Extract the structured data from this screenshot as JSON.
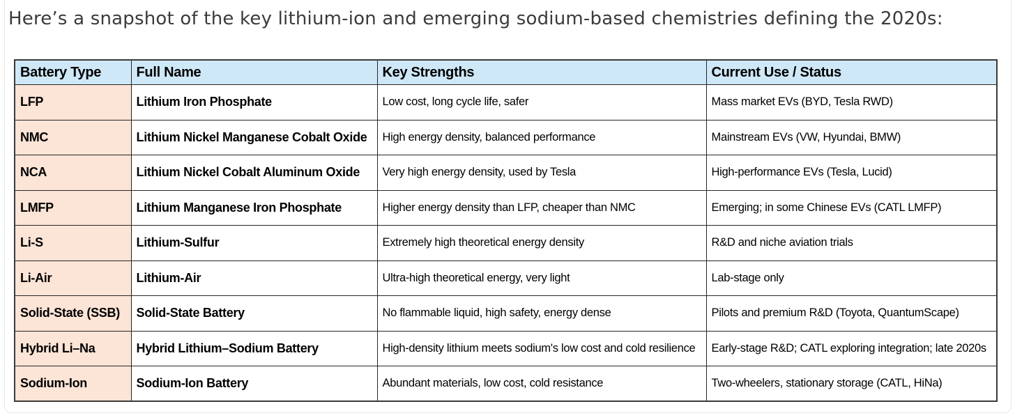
{
  "page": {
    "intro": "Here’s a snapshot of the key lithium-ion and emerging sodium-based chemistries defining the 2020s:"
  },
  "colors": {
    "header_bg": "#cfe8f7",
    "battery_type_col_bg": "#fce4d6",
    "table_border": "#262626",
    "intro_text": "#3b3b3b"
  },
  "table": {
    "columns": [
      "Battery Type",
      "Full Name",
      "Key Strengths",
      "Current Use / Status"
    ],
    "rows": [
      {
        "type": "LFP",
        "full_name": "Lithium Iron Phosphate",
        "strengths": "Low cost, long cycle life, safer",
        "status": "Mass market EVs (BYD, Tesla RWD)"
      },
      {
        "type": "NMC",
        "full_name": "Lithium Nickel Manganese Cobalt Oxide",
        "strengths": "High energy density, balanced performance",
        "status": "Mainstream EVs (VW, Hyundai, BMW)"
      },
      {
        "type": "NCA",
        "full_name": "Lithium Nickel Cobalt Aluminum Oxide",
        "strengths": "Very high energy density, used by Tesla",
        "status": "High-performance EVs (Tesla, Lucid)"
      },
      {
        "type": "LMFP",
        "full_name": "Lithium Manganese Iron Phosphate",
        "strengths": "Higher energy density than LFP, cheaper than NMC",
        "status": "Emerging; in some Chinese EVs (CATL LMFP)"
      },
      {
        "type": "Li-S",
        "full_name": "Lithium-Sulfur",
        "strengths": "Extremely high theoretical energy density",
        "status": "R&D and niche aviation trials"
      },
      {
        "type": "Li-Air",
        "full_name": "Lithium-Air",
        "strengths": "Ultra-high theoretical energy, very light",
        "status": "Lab-stage only"
      },
      {
        "type": "Solid-State (SSB)",
        "full_name": "Solid-State Battery",
        "strengths": "No flammable liquid, high safety, energy dense",
        "status": "Pilots and premium R&D (Toyota, QuantumScape)"
      },
      {
        "type": "Hybrid Li–Na",
        "full_name": "Hybrid Lithium–Sodium Battery",
        "strengths": "High-density lithium meets sodium's low cost and cold resilience",
        "status": "Early-stage R&D; CATL exploring integration;  late 2020s"
      },
      {
        "type": "Sodium-Ion",
        "full_name": "Sodium-Ion Battery",
        "strengths": "Abundant materials, low cost, cold resistance",
        "status": "Two-wheelers, stationary storage (CATL, HiNa)"
      }
    ]
  }
}
